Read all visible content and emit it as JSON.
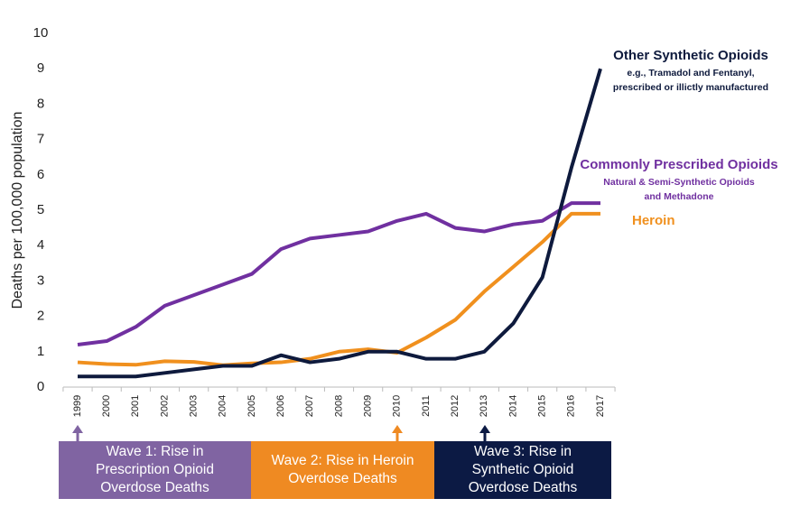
{
  "chart_data": {
    "type": "line",
    "y_label": "Deaths per 100,000 population",
    "categories": [
      "1999",
      "2000",
      "2001",
      "2002",
      "2003",
      "2004",
      "2005",
      "2006",
      "2007",
      "2008",
      "2009",
      "2010",
      "2011",
      "2012",
      "2013",
      "2014",
      "2015",
      "2016",
      "2017"
    ],
    "ylim": [
      0,
      10
    ],
    "yticks": [
      0,
      1,
      2,
      3,
      4,
      5,
      6,
      7,
      8,
      9,
      10
    ],
    "series": [
      {
        "name": "Other Synthetic Opioids",
        "color": "#0e1a3d",
        "note_lines": [
          "e.g., Tramadol and Fentanyl,",
          "prescribed or illictly manufactured"
        ],
        "values": [
          0.3,
          0.3,
          0.3,
          0.4,
          0.5,
          0.6,
          0.6,
          0.9,
          0.7,
          0.8,
          1.0,
          1.0,
          0.8,
          0.8,
          1.0,
          1.8,
          3.1,
          6.2,
          9.0
        ]
      },
      {
        "name": "Commonly Prescribed Opioids",
        "color": "#7030a0",
        "note_lines": [
          "Natural & Semi-Synthetic Opioids",
          "and Methadone"
        ],
        "values": [
          1.2,
          1.3,
          1.7,
          2.3,
          2.6,
          2.9,
          3.2,
          3.9,
          4.2,
          4.3,
          4.4,
          4.7,
          4.9,
          4.5,
          4.4,
          4.6,
          4.7,
          5.2,
          5.2
        ]
      },
      {
        "name": "Heroin",
        "color": "#f0901e",
        "values": [
          0.7,
          0.65,
          0.63,
          0.73,
          0.71,
          0.62,
          0.67,
          0.7,
          0.8,
          1.0,
          1.07,
          0.97,
          1.4,
          1.9,
          2.7,
          3.4,
          4.1,
          4.9,
          4.9
        ]
      }
    ],
    "waves": [
      {
        "color": "#8064a2",
        "lines": [
          "Wave 1: Rise in",
          "Prescription Opioid",
          "Overdose Deaths"
        ]
      },
      {
        "color": "#ef8a22",
        "lines": [
          "Wave 2: Rise in Heroin",
          "Overdose Deaths"
        ]
      },
      {
        "color": "#0c1a44",
        "lines": [
          "Wave 3: Rise in",
          "Synthetic Opioid",
          "Overdose Deaths"
        ]
      }
    ]
  }
}
